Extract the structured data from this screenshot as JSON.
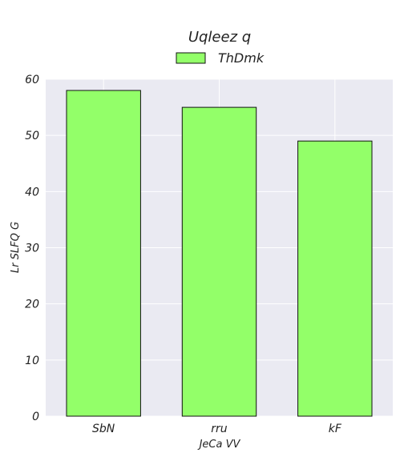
{
  "chart_data": {
    "type": "bar",
    "title": "Uqleez q",
    "xlabel": "JeCa VV",
    "ylabel": "Lr SLFQ  G",
    "categories": [
      "SbN",
      "rru",
      "kF"
    ],
    "series": [
      {
        "name": "ThDmk",
        "values": [
          58,
          55,
          49
        ]
      }
    ],
    "ylim": [
      0,
      60
    ],
    "yticks": [
      0,
      10,
      20,
      30,
      40,
      50,
      60
    ],
    "grid": true,
    "legend_position": "top-center",
    "colors": {
      "bar_fill": "#93ff69",
      "bar_edge": "#111111",
      "plot_background": "#eaeaf2",
      "grid": "#ffffff"
    }
  }
}
